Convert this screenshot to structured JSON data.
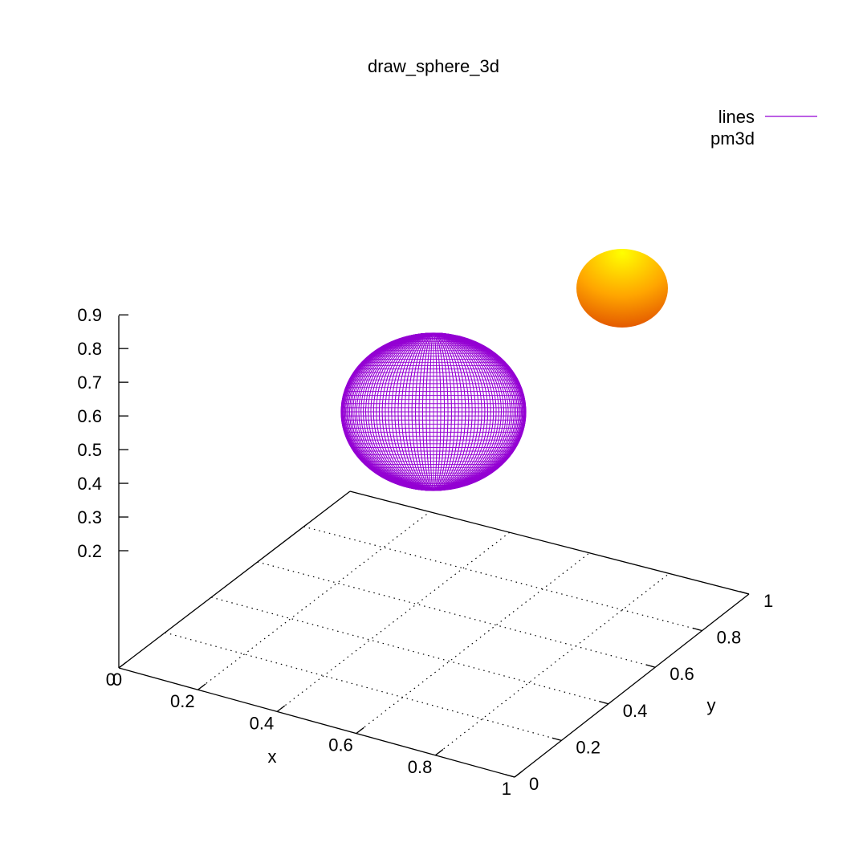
{
  "chart_data": {
    "type": "surface3d",
    "title": "draw_sphere_3d",
    "xlabel": "x",
    "ylabel": "y",
    "zlabel": "",
    "x_ticks": [
      "0",
      "0.2",
      "0.4",
      "0.6",
      "0.8",
      "1"
    ],
    "y_ticks": [
      "0",
      "0.2",
      "0.4",
      "0.6",
      "0.8",
      "1"
    ],
    "z_ticks": [
      "0.2",
      "0.3",
      "0.4",
      "0.5",
      "0.6",
      "0.7",
      "0.8",
      "0.9"
    ],
    "xlim": [
      0,
      1
    ],
    "ylim": [
      0,
      1
    ],
    "zlim": [
      0,
      0.9
    ],
    "grid": true,
    "legend_position": "top-right",
    "series": [
      {
        "name": "lines",
        "style": "lines",
        "shape": "sphere",
        "color": "#9400d3"
      },
      {
        "name": "pm3d",
        "style": "pm3d",
        "shape": "sphere",
        "colors": [
          "#ffff00",
          "#ffa500",
          "#e05000"
        ]
      }
    ]
  }
}
